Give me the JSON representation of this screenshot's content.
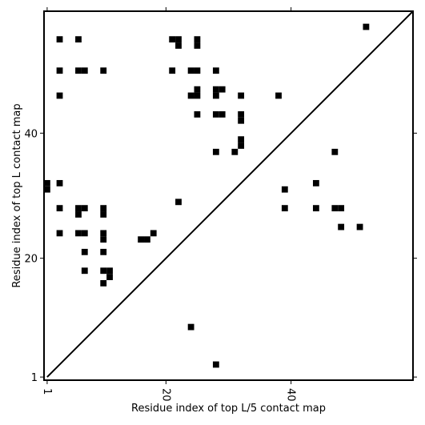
{
  "chart_data": {
    "type": "heatmap",
    "title": "",
    "xlabel": "Residue index of top L/5 contact map",
    "ylabel": "Residue index of top L contact map",
    "xlim": [
      0.5,
      59.5
    ],
    "ylim": [
      0.5,
      59.5
    ],
    "xticks": [
      1,
      20,
      40
    ],
    "yticks": [
      1,
      20,
      40
    ],
    "cell_color": "#000000",
    "diagonal": true,
    "contacts_upper": [
      [
        3,
        55
      ],
      [
        6,
        55
      ],
      [
        3,
        50
      ],
      [
        6,
        50
      ],
      [
        7,
        50
      ],
      [
        10,
        50
      ],
      [
        3,
        46
      ],
      [
        21,
        55
      ],
      [
        22,
        55
      ],
      [
        22,
        54
      ],
      [
        25,
        55
      ],
      [
        25,
        54
      ],
      [
        21,
        50
      ],
      [
        24,
        50
      ],
      [
        25,
        50
      ],
      [
        28,
        50
      ],
      [
        25,
        47
      ],
      [
        28,
        47
      ],
      [
        29,
        47
      ],
      [
        24,
        46
      ],
      [
        25,
        46
      ],
      [
        28,
        46
      ],
      [
        32,
        46
      ],
      [
        38,
        46
      ],
      [
        25,
        43
      ],
      [
        28,
        43
      ],
      [
        29,
        43
      ],
      [
        32,
        43
      ],
      [
        32,
        42
      ],
      [
        32,
        39
      ],
      [
        32,
        38
      ],
      [
        28,
        37
      ],
      [
        31,
        37
      ],
      [
        47,
        37
      ],
      [
        52,
        57
      ]
    ],
    "contacts_lower": [
      [
        1,
        32
      ],
      [
        1,
        31
      ],
      [
        3,
        32
      ],
      [
        22,
        29
      ],
      [
        39,
        31
      ],
      [
        44,
        32
      ],
      [
        3,
        28
      ],
      [
        6,
        28
      ],
      [
        7,
        28
      ],
      [
        10,
        28
      ],
      [
        6,
        27
      ],
      [
        10,
        27
      ],
      [
        39,
        28
      ],
      [
        44,
        28
      ],
      [
        47,
        28
      ],
      [
        48,
        28
      ],
      [
        3,
        24
      ],
      [
        6,
        24
      ],
      [
        7,
        24
      ],
      [
        10,
        24
      ],
      [
        10,
        23
      ],
      [
        18,
        24
      ],
      [
        16,
        23
      ],
      [
        17,
        23
      ],
      [
        48,
        25
      ],
      [
        51,
        25
      ],
      [
        7,
        21
      ],
      [
        10,
        21
      ],
      [
        7,
        18
      ],
      [
        10,
        18
      ],
      [
        11,
        18
      ],
      [
        11,
        17
      ],
      [
        10,
        16
      ],
      [
        24,
        9
      ],
      [
        28,
        3
      ]
    ]
  }
}
